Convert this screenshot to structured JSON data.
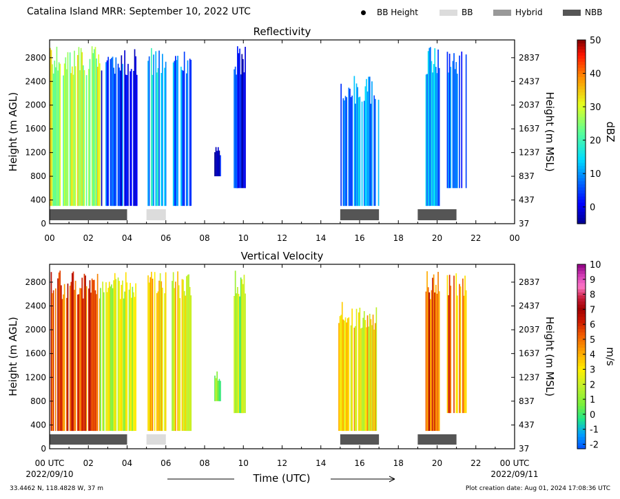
{
  "header": {
    "title": "Catalina Island MRR:  September 10, 2022 UTC",
    "legend": [
      {
        "label": "BB Height",
        "kind": "dot",
        "color": "#000000"
      },
      {
        "label": "BB",
        "kind": "box",
        "color": "#dcdcdc"
      },
      {
        "label": "Hybrid",
        "kind": "box",
        "color": "#999999"
      },
      {
        "label": "NBB",
        "kind": "box",
        "color": "#555555"
      }
    ]
  },
  "footer": {
    "location": "33.4462 N, 118.4828 W, 37 m",
    "created": "Plot creation date: Aug 01, 2024 17:08:36 UTC",
    "xlabel": "Time (UTC)"
  },
  "colors": {
    "nbb": "#555555",
    "bb": "#dcdcdc",
    "hybrid": "#999999"
  },
  "chart_data": [
    {
      "type": "heatmap",
      "title": "Reflectivity",
      "ylabel": "Height (m AGL)",
      "ylabel_right": "Height (m MSL)",
      "xlim": [
        0,
        24
      ],
      "ylim": [
        0,
        3100
      ],
      "x_ticks": [
        "00",
        "02",
        "04",
        "06",
        "08",
        "10",
        "12",
        "14",
        "16",
        "18",
        "20",
        "22",
        "00"
      ],
      "y_ticks": [
        0,
        400,
        800,
        1200,
        1600,
        2000,
        2400,
        2800
      ],
      "y_ticks_right": [
        "37",
        "437",
        "837",
        "1237",
        "1637",
        "2037",
        "2437",
        "2837"
      ],
      "colorbar": {
        "label": "dBZ",
        "min": -5,
        "max": 50,
        "ticks": [
          "0",
          "10",
          "20",
          "30",
          "40",
          "50"
        ]
      },
      "precip_type": [
        {
          "type": "NBB",
          "start": 0.0,
          "end": 4.0
        },
        {
          "type": "BB",
          "start": 5.0,
          "end": 6.0
        },
        {
          "type": "NBB",
          "start": 15.0,
          "end": 17.0
        },
        {
          "type": "NBB",
          "start": 19.0,
          "end": 21.0
        }
      ],
      "echo_regions": [
        {
          "start": 0.0,
          "end": 2.6,
          "bottom": 300,
          "top": 3000,
          "value": 28
        },
        {
          "start": 2.6,
          "end": 4.5,
          "bottom": 300,
          "top": 3000,
          "value": 4
        },
        {
          "start": 5.0,
          "end": 6.0,
          "bottom": 300,
          "top": 3000,
          "value": 13
        },
        {
          "start": 6.3,
          "end": 7.3,
          "bottom": 300,
          "top": 3000,
          "value": 9
        },
        {
          "start": 8.5,
          "end": 8.8,
          "bottom": 800,
          "top": 1300,
          "value": -2
        },
        {
          "start": 9.5,
          "end": 10.1,
          "bottom": 600,
          "top": 3000,
          "value": 2
        },
        {
          "start": 14.9,
          "end": 17.0,
          "bottom": 300,
          "top": 2500,
          "value": 10
        },
        {
          "start": 19.4,
          "end": 20.1,
          "bottom": 300,
          "top": 3000,
          "value": 9
        },
        {
          "start": 20.5,
          "end": 21.5,
          "bottom": 600,
          "top": 3000,
          "value": 6
        }
      ]
    },
    {
      "type": "heatmap",
      "title": "Vertical Velocity",
      "ylabel": "Height (m AGL)",
      "ylabel_right": "Height (m MSL)",
      "xlim": [
        0,
        24
      ],
      "ylim": [
        0,
        3100
      ],
      "x_ticks": [
        "00 UTC",
        "02",
        "04",
        "06",
        "08",
        "10",
        "12",
        "14",
        "16",
        "18",
        "20",
        "22",
        "00 UTC"
      ],
      "x_date_left": "2022/09/10",
      "x_date_right": "2022/09/11",
      "y_ticks": [
        0,
        400,
        800,
        1200,
        1600,
        2000,
        2400,
        2800
      ],
      "y_ticks_right": [
        "37",
        "437",
        "837",
        "1237",
        "1637",
        "2037",
        "2437",
        "2837"
      ],
      "colorbar": {
        "label": "m/s",
        "min": -2.3,
        "max": 10,
        "ticks": [
          "-2",
          "-1",
          "0",
          "1",
          "2",
          "3",
          "4",
          "5",
          "6",
          "7",
          "8",
          "9",
          "10"
        ]
      },
      "precip_type": [
        {
          "type": "NBB",
          "start": 0.0,
          "end": 4.0
        },
        {
          "type": "BB",
          "start": 5.0,
          "end": 6.0
        },
        {
          "type": "NBB",
          "start": 15.0,
          "end": 17.0
        },
        {
          "type": "NBB",
          "start": 19.0,
          "end": 21.0
        }
      ],
      "echo_regions": [
        {
          "start": 0.0,
          "end": 2.6,
          "bottom": 300,
          "top": 3000,
          "value": 5.8
        },
        {
          "start": 2.6,
          "end": 4.5,
          "bottom": 300,
          "top": 3000,
          "value": 2.2
        },
        {
          "start": 5.0,
          "end": 6.0,
          "bottom": 300,
          "top": 3000,
          "value": 3.4
        },
        {
          "start": 6.3,
          "end": 7.3,
          "bottom": 300,
          "top": 3000,
          "value": 2.8
        },
        {
          "start": 8.5,
          "end": 8.8,
          "bottom": 800,
          "top": 1300,
          "value": 1.0
        },
        {
          "start": 9.5,
          "end": 10.1,
          "bottom": 600,
          "top": 3000,
          "value": 1.4
        },
        {
          "start": 14.9,
          "end": 17.0,
          "bottom": 300,
          "top": 2500,
          "value": 3.2
        },
        {
          "start": 19.4,
          "end": 20.1,
          "bottom": 300,
          "top": 3000,
          "value": 5.6
        },
        {
          "start": 20.5,
          "end": 21.5,
          "bottom": 600,
          "top": 3000,
          "value": 4.5
        }
      ]
    }
  ]
}
